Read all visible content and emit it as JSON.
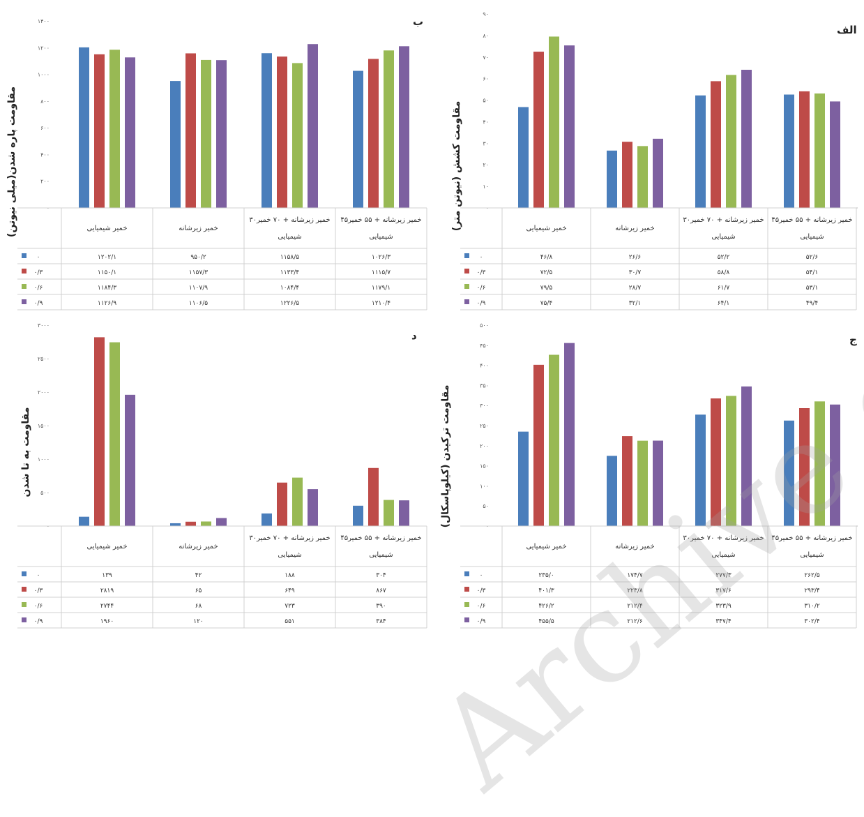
{
  "watermark": "Archive of SID",
  "legend_keys": [
    "۰",
    "۰/۳",
    "۰/۶",
    "۰/۹"
  ],
  "colors": [
    "#4a7ebb",
    "#be4b48",
    "#98b954",
    "#7d60a0"
  ],
  "chart_data": [
    {
      "type": "bar",
      "panel_label": "ب",
      "ylabel": "مقاومت پاره شدن(میلی نیوتن)",
      "ylim": [
        0,
        1400
      ],
      "yticks": [
        "۰",
        "۲۰۰",
        "۴۰۰",
        "۶۰۰",
        "۸۰۰",
        "۱۰۰۰",
        "۱۲۰۰",
        "۱۴۰۰"
      ],
      "categories": [
        "خمیر شیمیایی",
        "خمیر زیرشانه",
        "۳۰خمیر زیرشانه + ۷۰ خمیر شیمیایی",
        "۴۵خمیر زیرشانه + ۵۵ خمیر شیمیایی"
      ],
      "series": [
        {
          "name": "۰",
          "values": [
            1202.1,
            950.2,
            1158.5,
            1026.3
          ],
          "labels": [
            "۱۲۰۲/۱",
            "۹۵۰/۲",
            "۱۱۵۸/۵",
            "۱۰۲۶/۳"
          ]
        },
        {
          "name": "۰/۳",
          "values": [
            1150.1,
            1157.3,
            1133.4,
            1115.7
          ],
          "labels": [
            "۱۱۵۰/۱",
            "۱۱۵۷/۳",
            "۱۱۳۳/۴",
            "۱۱۱۵/۷"
          ]
        },
        {
          "name": "۰/۶",
          "values": [
            1184.3,
            1107.9,
            1084.4,
            1179.1
          ],
          "labels": [
            "۱۱۸۴/۳",
            "۱۱۰۷/۹",
            "۱۰۸۴/۴",
            "۱۱۷۹/۱"
          ]
        },
        {
          "name": "۰/۹",
          "values": [
            1126.9,
            1106.5,
            1226.5,
            1210.4
          ],
          "labels": [
            "۱۱۲۶/۹",
            "۱۱۰۶/۵",
            "۱۲۲۶/۵",
            "۱۲۱۰/۴"
          ]
        }
      ]
    },
    {
      "type": "bar",
      "panel_label": "الف",
      "ylabel": "مقاومت کشش (نیوتن متر)",
      "ylim": [
        0,
        90
      ],
      "yticks": [
        "۰",
        "۱۰",
        "۲۰",
        "۳۰",
        "۴۰",
        "۵۰",
        "۶۰",
        "۷۰",
        "۸۰",
        "۹۰"
      ],
      "categories": [
        "خمیر شیمیایی",
        "خمیر زیرشانه",
        "۳۰خمیر زیرشانه + ۷۰ خمیر شیمیایی",
        "۴۵خمیر زیرشانه + ۵۵ خمیر شیمیایی"
      ],
      "series": [
        {
          "name": "۰",
          "values": [
            46.8,
            26.6,
            52.2,
            52.6
          ],
          "labels": [
            "۴۶/۸",
            "۲۶/۶",
            "۵۲/۲",
            "۵۲/۶"
          ]
        },
        {
          "name": "۰/۳",
          "values": [
            72.5,
            30.7,
            58.8,
            54.1
          ],
          "labels": [
            "۷۲/۵",
            "۳۰/۷",
            "۵۸/۸",
            "۵۴/۱"
          ]
        },
        {
          "name": "۰/۶",
          "values": [
            79.5,
            28.7,
            61.7,
            53.1
          ],
          "labels": [
            "۷۹/۵",
            "۲۸/۷",
            "۶۱/۷",
            "۵۳/۱"
          ]
        },
        {
          "name": "۰/۹",
          "values": [
            75.4,
            32.1,
            64.1,
            49.4
          ],
          "labels": [
            "۷۵/۴",
            "۳۲/۱",
            "۶۴/۱",
            "۴۹/۴"
          ]
        }
      ]
    },
    {
      "type": "bar",
      "panel_label": "د",
      "ylabel": "مقاومت به تا شدن",
      "ylim": [
        0,
        3000
      ],
      "yticks": [
        "۰",
        "۵۰۰",
        "۱۰۰۰",
        "۱۵۰۰",
        "۲۰۰۰",
        "۲۵۰۰",
        "۳۰۰۰"
      ],
      "categories": [
        "خمیر شیمیایی",
        "خمیر زیرشانه",
        "۳۰خمیر زیرشانه + ۷۰ خمیر شیمیایی",
        "۴۵خمیر زیرشانه + ۵۵ خمیر شیمیایی"
      ],
      "series": [
        {
          "name": "۰",
          "values": [
            139,
            42,
            188,
            304
          ],
          "labels": [
            "۱۳۹",
            "۴۲",
            "۱۸۸",
            "۳۰۴"
          ]
        },
        {
          "name": "۰/۳",
          "values": [
            2819,
            65,
            649,
            867
          ],
          "labels": [
            "۲۸۱۹",
            "۶۵",
            "۶۴۹",
            "۸۶۷"
          ]
        },
        {
          "name": "۰/۶",
          "values": [
            2744,
            68,
            723,
            390
          ],
          "labels": [
            "۲۷۴۴",
            "۶۸",
            "۷۲۳",
            "۳۹۰"
          ]
        },
        {
          "name": "۰/۹",
          "values": [
            1960,
            120,
            551,
            384
          ],
          "labels": [
            "۱۹۶۰",
            "۱۲۰",
            "۵۵۱",
            "۳۸۴"
          ]
        }
      ]
    },
    {
      "type": "bar",
      "panel_label": "ج",
      "ylabel": "مقاومت ترکیدن (کیلوپاسکال)",
      "ylim": [
        0,
        500
      ],
      "yticks": [
        "۰",
        "۵۰",
        "۱۰۰",
        "۱۵۰",
        "۲۰۰",
        "۲۵۰",
        "۳۰۰",
        "۳۵۰",
        "۴۰۰",
        "۴۵۰",
        "۵۰۰"
      ],
      "categories": [
        "خمیر شیمیایی",
        "خمیر زیرشانه",
        "۳۰خمیر زیرشانه + ۷۰ خمیر شیمیایی",
        "۴۵خمیر زیرشانه + ۵۵ خمیر شیمیایی"
      ],
      "series": [
        {
          "name": "۰",
          "values": [
            235.0,
            174.7,
            277.3,
            262.5
          ],
          "labels": [
            "۲۳۵/۰",
            "۱۷۴/۷",
            "۲۷۷/۳",
            "۲۶۲/۵"
          ]
        },
        {
          "name": "۰/۳",
          "values": [
            401.3,
            223.8,
            317.6,
            293.4
          ],
          "labels": [
            "۴۰۱/۳",
            "۲۲۳/۸",
            "۳۱۷/۶",
            "۲۹۳/۴"
          ]
        },
        {
          "name": "۰/۶",
          "values": [
            426.2,
            212.4,
            323.9,
            310.2
          ],
          "labels": [
            "۴۲۶/۲",
            "۲۱۲/۴",
            "۳۲۳/۹",
            "۳۱۰/۲"
          ]
        },
        {
          "name": "۰/۹",
          "values": [
            455.5,
            212.6,
            347.4,
            302.4
          ],
          "labels": [
            "۴۵۵/۵",
            "۲۱۲/۶",
            "۳۴۷/۴",
            "۳۰۲/۴"
          ]
        }
      ]
    }
  ]
}
